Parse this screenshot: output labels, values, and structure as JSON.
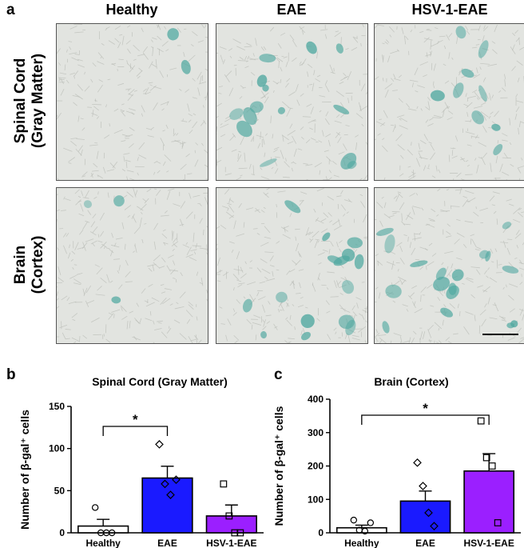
{
  "figure": {
    "panel_a_letter": "a",
    "panel_b_letter": "b",
    "panel_c_letter": "c",
    "column_titles": [
      "Healthy",
      "EAE",
      "HSV-1-EAE"
    ],
    "row_labels": [
      [
        "Spinal Cord",
        "(Gray Matter)"
      ],
      [
        "Brain",
        "(Cortex)"
      ]
    ],
    "tile_colors": {
      "background": "#e2e4e0",
      "texture": "#b9bcb6",
      "stain": "#4fa8a0"
    },
    "stain_levels": [
      [
        0.05,
        0.45,
        0.3
      ],
      [
        0.1,
        0.5,
        0.55
      ]
    ]
  },
  "chart_data": [
    {
      "type": "bar",
      "title": "Spinal Cord (Gray Matter)",
      "ylabel": "Number of β-gal⁺ cells",
      "xlabel": "",
      "categories": [
        "Healthy",
        "EAE",
        "HSV-1-EAE"
      ],
      "values": [
        8,
        65,
        20
      ],
      "sem": [
        8,
        14,
        13
      ],
      "bar_colors": [
        "#ffffff",
        "#1a1aff",
        "#9b1fff"
      ],
      "ylim": [
        0,
        150
      ],
      "yticks": [
        0,
        50,
        100,
        150
      ],
      "points": [
        [
          30,
          0,
          0,
          0
        ],
        [
          105,
          58,
          45,
          63
        ],
        [
          58,
          20,
          0,
          0
        ]
      ],
      "point_markers": [
        "circle",
        "diamond",
        "square"
      ],
      "significance": {
        "from": 0,
        "to": 1,
        "label": "*"
      },
      "grid": false
    },
    {
      "type": "bar",
      "title": "Brain (Cortex)",
      "ylabel": "Number of β-gal⁺ cells",
      "xlabel": "",
      "categories": [
        "Healthy",
        "EAE",
        "HSV-1-EAE"
      ],
      "values": [
        15,
        95,
        185
      ],
      "sem": [
        8,
        30,
        52
      ],
      "bar_colors": [
        "#ffffff",
        "#1a1aff",
        "#9b1fff"
      ],
      "ylim": [
        0,
        400
      ],
      "yticks": [
        0,
        100,
        200,
        300,
        400
      ],
      "points": [
        [
          38,
          8,
          5,
          30
        ],
        [
          210,
          140,
          60,
          20
        ],
        [
          335,
          225,
          200,
          30
        ]
      ],
      "point_markers": [
        "circle",
        "diamond",
        "square"
      ],
      "significance": {
        "from": 0,
        "to": 2,
        "label": "*"
      },
      "grid": false
    }
  ]
}
